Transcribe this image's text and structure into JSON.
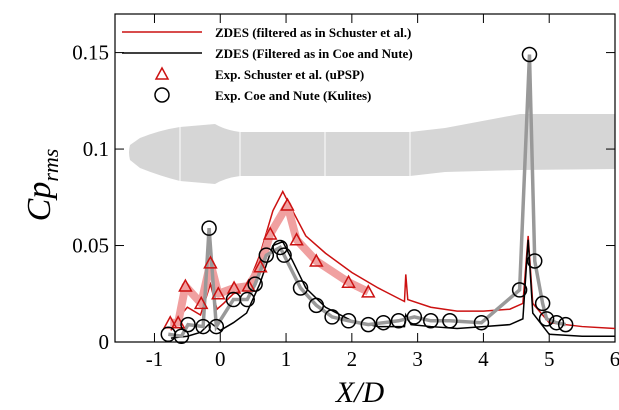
{
  "chart_data": {
    "type": "line",
    "x_label": "X/D",
    "y_label": "Cp",
    "y_label_subscript": "rms",
    "xlim": [
      -1.6,
      6
    ],
    "ylim": [
      0,
      0.17
    ],
    "xticks": [
      -1,
      0,
      1,
      2,
      3,
      4,
      5,
      6
    ],
    "yticks": [
      0,
      0.05,
      0.1,
      0.15
    ],
    "legend": "upper left",
    "series": [
      {
        "name": "ZDES (filtered as in Schuster et al.)",
        "color": "#cc1111",
        "marker": null,
        "x": [
          -0.75,
          -0.65,
          -0.5,
          -0.3,
          -0.15,
          -0.05,
          0.05,
          0.2,
          0.4,
          0.6,
          0.8,
          0.95,
          1.1,
          1.3,
          1.6,
          2.0,
          2.4,
          2.8,
          2.82,
          2.85,
          3.2,
          3.6,
          4.0,
          4.4,
          4.6,
          4.68,
          4.75,
          5.0,
          5.5,
          6.0
        ],
        "values": [
          0.006,
          0.012,
          0.018,
          0.014,
          0.03,
          0.017,
          0.02,
          0.025,
          0.028,
          0.045,
          0.068,
          0.078,
          0.068,
          0.055,
          0.046,
          0.036,
          0.028,
          0.021,
          0.035,
          0.022,
          0.018,
          0.016,
          0.016,
          0.017,
          0.02,
          0.055,
          0.02,
          0.01,
          0.008,
          0.007
        ]
      },
      {
        "name": "ZDES (Filtered as in Coe and Nute)",
        "color": "#000000",
        "marker": null,
        "x": [
          -0.75,
          -0.5,
          -0.3,
          -0.15,
          0,
          0.2,
          0.4,
          0.6,
          0.8,
          0.95,
          1.1,
          1.3,
          1.6,
          2.0,
          2.4,
          2.8,
          2.82,
          2.9,
          3.2,
          3.6,
          4.0,
          4.4,
          4.6,
          4.68,
          4.75,
          5.0,
          5.5,
          6.0
        ],
        "values": [
          0.002,
          0.003,
          0.005,
          0.01,
          0.006,
          0.01,
          0.015,
          0.03,
          0.05,
          0.052,
          0.042,
          0.028,
          0.018,
          0.011,
          0.008,
          0.008,
          0.014,
          0.009,
          0.008,
          0.007,
          0.008,
          0.009,
          0.012,
          0.053,
          0.015,
          0.004,
          0.003,
          0.003
        ]
      },
      {
        "name": "Exp. Schuster et al. (uPSP)",
        "color": "#cc1111",
        "marker": "triangle",
        "x": [
          -0.76,
          -0.64,
          -0.53,
          -0.29,
          -0.15,
          -0.03,
          0.21,
          0.43,
          0.61,
          0.76,
          1.02,
          1.16,
          1.46,
          1.95,
          2.25
        ],
        "values": [
          0.01,
          0.01,
          0.029,
          0.02,
          0.041,
          0.025,
          0.028,
          0.029,
          0.039,
          0.056,
          0.071,
          0.053,
          0.042,
          0.031,
          0.026
        ]
      },
      {
        "name": "Exp. Coe and Nute (Kulites)",
        "color": "#000000",
        "marker": "circle",
        "x": [
          -0.79,
          -0.59,
          -0.49,
          -0.26,
          -0.17,
          -0.06,
          0.2,
          0.41,
          0.53,
          0.7,
          0.91,
          0.97,
          1.22,
          1.46,
          1.7,
          1.95,
          2.25,
          2.48,
          2.71,
          2.95,
          3.2,
          3.49,
          3.97,
          4.55,
          4.7,
          4.78,
          4.9,
          4.96,
          5.11,
          5.25
        ],
        "values": [
          0.004,
          0.003,
          0.009,
          0.008,
          0.059,
          0.008,
          0.022,
          0.022,
          0.03,
          0.045,
          0.049,
          0.045,
          0.028,
          0.019,
          0.013,
          0.011,
          0.009,
          0.01,
          0.011,
          0.013,
          0.011,
          0.011,
          0.01,
          0.027,
          0.149,
          0.042,
          0.02,
          0.012,
          0.01,
          0.009
        ]
      }
    ]
  }
}
